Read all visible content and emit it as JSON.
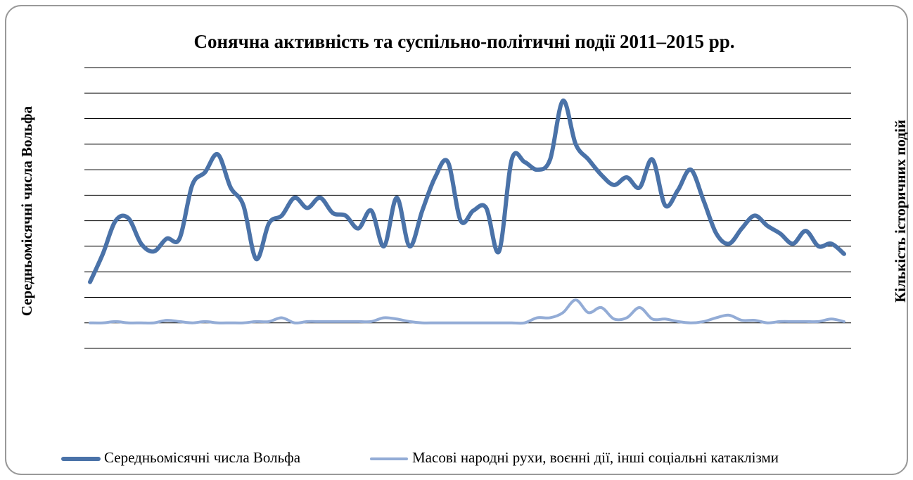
{
  "chart_data": {
    "type": "line",
    "title": "Сонячна активність та суспільно-політичні події 2011–2015 рр.",
    "ylabel": "Середньомісячні числа Вольфа",
    "y2label": "Кількість історичних подій",
    "ylim": [
      0,
      11
    ],
    "yticks": [
      0,
      1,
      2,
      3,
      4,
      5,
      6,
      7,
      8,
      9,
      10,
      11
    ],
    "y2lim": [
      0,
      11
    ],
    "grid": true,
    "legend": "bottom",
    "series": [
      {
        "name": "Середньомісячні числа Вольфа",
        "color": "#4a72a8",
        "values": [
          2.6,
          3.7,
          5.0,
          5.1,
          4.1,
          3.8,
          4.3,
          4.3,
          6.4,
          6.9,
          7.6,
          6.3,
          5.6,
          3.5,
          4.9,
          5.2,
          5.9,
          5.5,
          5.9,
          5.3,
          5.2,
          4.7,
          5.4,
          4.0,
          5.9,
          4.0,
          5.4,
          6.7,
          7.3,
          5.0,
          5.4,
          5.5,
          3.8,
          7.4,
          7.3,
          7.0,
          7.4,
          9.7,
          8.0,
          7.4,
          6.8,
          6.4,
          6.7,
          6.3,
          7.4,
          5.6,
          6.2,
          7.0,
          5.8,
          4.5,
          4.1,
          4.7,
          5.2,
          4.8,
          4.5,
          4.1,
          4.6,
          4.0,
          4.1,
          3.7
        ]
      },
      {
        "name": "Масові народні рухи,  воєнні дії, інші соціальні катаклізми",
        "color": "#93acd6",
        "axis": "y2",
        "values": [
          1,
          1,
          1.05,
          1,
          1,
          1,
          1.1,
          1.05,
          1,
          1.05,
          1,
          1,
          1,
          1.05,
          1.05,
          1.2,
          1,
          1.05,
          1.05,
          1.05,
          1.05,
          1.05,
          1.05,
          1.2,
          1.15,
          1.05,
          1,
          1,
          1,
          1,
          1,
          1,
          1,
          1,
          1,
          1.2,
          1.2,
          1.4,
          1.9,
          1.4,
          1.6,
          1.15,
          1.2,
          1.6,
          1.15,
          1.15,
          1.05,
          1,
          1.05,
          1.2,
          1.3,
          1.1,
          1.1,
          1,
          1.05,
          1.05,
          1.05,
          1.05,
          1.15,
          1.05
        ]
      }
    ]
  }
}
